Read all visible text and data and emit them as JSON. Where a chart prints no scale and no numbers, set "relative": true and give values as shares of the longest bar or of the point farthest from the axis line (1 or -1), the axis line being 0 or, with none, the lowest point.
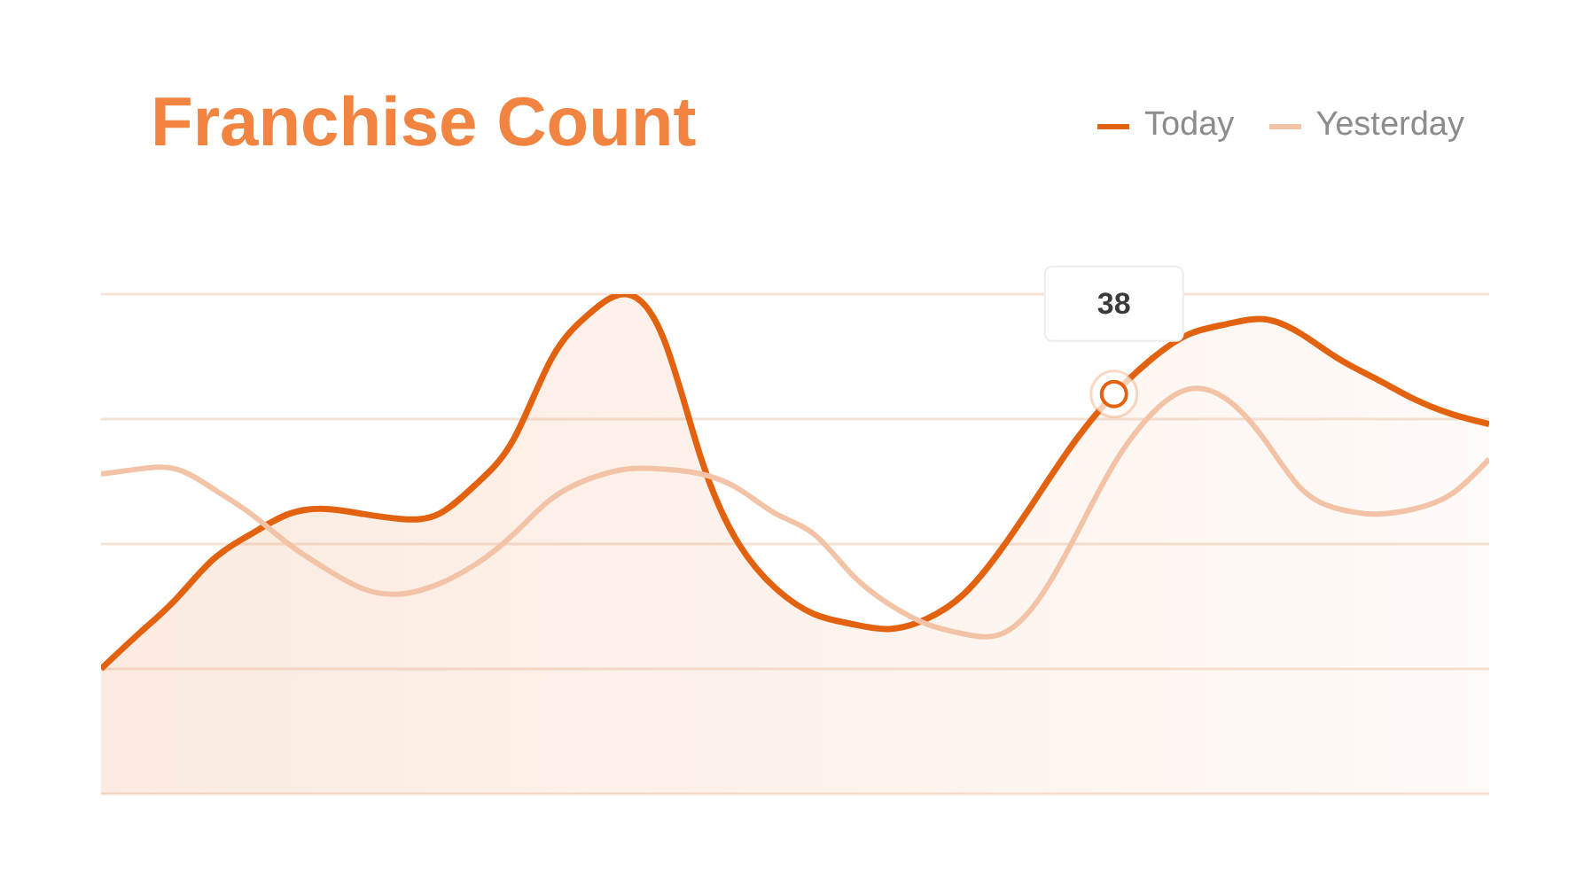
{
  "chart_data": {
    "type": "area",
    "title": "Franchise Count",
    "relative": true,
    "grid": "y",
    "legend": "top right",
    "categories": [
      null,
      null,
      null,
      null,
      null,
      null,
      null,
      null,
      null,
      null,
      null,
      null,
      null,
      null,
      null,
      null,
      null,
      null,
      null,
      null,
      null,
      null,
      null,
      null,
      null,
      null,
      null,
      null,
      null,
      null,
      null,
      null,
      null,
      null,
      null,
      null,
      null,
      null
    ],
    "series": [
      {
        "name": "Today",
        "color": "#e2620f",
        "values": [
          0.25,
          0.32,
          0.39,
          0.47,
          0.52,
          0.56,
          0.57,
          0.56,
          0.55,
          0.56,
          0.62,
          0.71,
          0.87,
          0.96,
          1.0,
          0.91,
          0.67,
          0.5,
          0.41,
          0.36,
          0.34,
          0.33,
          0.35,
          0.4,
          0.49,
          0.6,
          0.71,
          0.8,
          0.87,
          0.92,
          0.94,
          0.95,
          0.92,
          0.87,
          0.83,
          0.79,
          0.76,
          0.74
        ]
      },
      {
        "name": "Yesterday",
        "type": "line",
        "color": "#f2c3a6",
        "values": [
          0.64,
          0.65,
          0.65,
          0.61,
          0.56,
          0.5,
          0.45,
          0.41,
          0.4,
          0.42,
          0.46,
          0.52,
          0.59,
          0.63,
          0.65,
          0.65,
          0.64,
          0.61,
          0.56,
          0.52,
          0.44,
          0.38,
          0.34,
          0.32,
          0.32,
          0.39,
          0.52,
          0.66,
          0.76,
          0.81,
          0.79,
          0.71,
          0.61,
          0.57,
          0.56,
          0.57,
          0.6,
          0.67
        ]
      }
    ],
    "annotations": [
      {
        "text": "38",
        "y": 0.8
      }
    ]
  }
}
